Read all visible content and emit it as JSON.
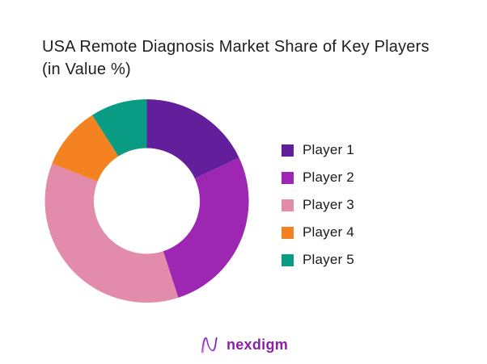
{
  "title": {
    "line1": "USA Remote Diagnosis Market Share of Key Players",
    "line2": "(in Value %)"
  },
  "chart_data": {
    "type": "pie",
    "subtype": "donut",
    "title": "USA Remote Diagnosis Market Share of Key Players (in Value %)",
    "categories": [
      "Player 1",
      "Player 2",
      "Player 3",
      "Player 4",
      "Player 5"
    ],
    "values": [
      18,
      27,
      36,
      10,
      9
    ],
    "unit": "percent of market value",
    "colors": [
      "#621e9b",
      "#9d27b2",
      "#e28bab",
      "#f58220",
      "#0a9b85"
    ],
    "start_angle_deg": 0,
    "direction": "clockwise",
    "inner_radius_ratio": 0.52,
    "legend_position": "right",
    "data_labels": "none"
  },
  "legend": {
    "items": [
      {
        "label": "Player 1",
        "color": "#621e9b"
      },
      {
        "label": "Player 2",
        "color": "#9d27b2"
      },
      {
        "label": "Player 3",
        "color": "#e28bab"
      },
      {
        "label": "Player 4",
        "color": "#f58220"
      },
      {
        "label": "Player 5",
        "color": "#0a9b85"
      }
    ]
  },
  "footer": {
    "brand": "nexdigm",
    "brand_color": "#8a1fa8",
    "logo_icon": "nexdigm-n-mark"
  }
}
